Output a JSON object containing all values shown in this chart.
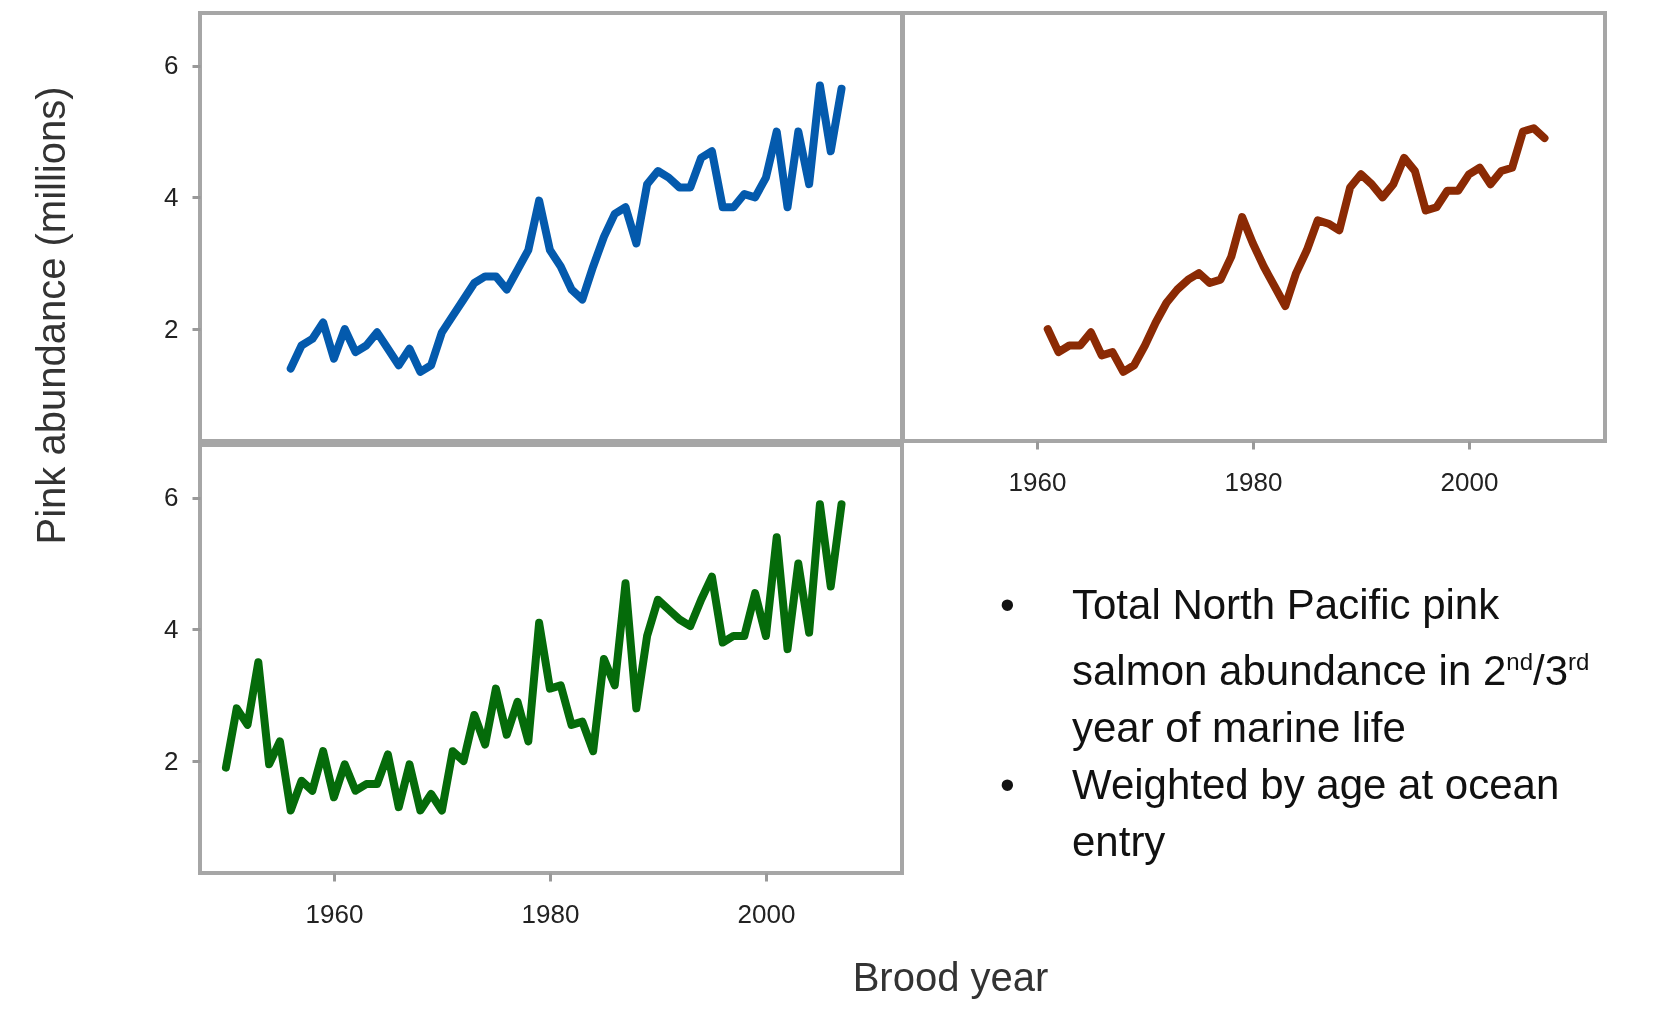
{
  "chart_data": [
    {
      "type": "line",
      "x": [
        1956,
        1957,
        1958,
        1959,
        1960,
        1961,
        1962,
        1963,
        1964,
        1965,
        1966,
        1967,
        1968,
        1969,
        1970,
        1971,
        1972,
        1973,
        1974,
        1975,
        1976,
        1977,
        1978,
        1979,
        1980,
        1981,
        1982,
        1983,
        1984,
        1985,
        1986,
        1987,
        1988,
        1989,
        1990,
        1991,
        1992,
        1993,
        1994,
        1995,
        1996,
        1997,
        1998,
        1999,
        2000,
        2001,
        2002,
        2003,
        2004,
        2005,
        2006,
        2007
      ],
      "series": [
        {
          "color": "#045aad",
          "values": [
            1.4,
            1.75,
            1.85,
            2.1,
            1.55,
            2.0,
            1.65,
            1.75,
            1.95,
            1.7,
            1.45,
            1.7,
            1.35,
            1.45,
            1.95,
            2.2,
            2.45,
            2.7,
            2.8,
            2.8,
            2.6,
            2.9,
            3.2,
            3.95,
            3.2,
            2.95,
            2.6,
            2.45,
            2.95,
            3.4,
            3.75,
            3.85,
            3.3,
            4.2,
            4.4,
            4.3,
            4.15,
            4.15,
            4.6,
            4.7,
            3.85,
            3.85,
            4.05,
            4.0,
            4.3,
            5.0,
            3.85,
            5.0,
            4.2,
            5.7,
            4.7,
            5.65
          ]
        }
      ],
      "xlim": [
        1947.6,
        2012.6
      ],
      "ylim": [
        0.3,
        6.8
      ],
      "yticks": [
        2,
        4,
        6
      ],
      "tick_labels": "y",
      "line_style": "solid"
    },
    {
      "type": "line",
      "x": [
        1961,
        1962,
        1963,
        1964,
        1965,
        1966,
        1967,
        1968,
        1969,
        1970,
        1971,
        1972,
        1973,
        1974,
        1975,
        1976,
        1977,
        1978,
        1979,
        1980,
        1981,
        1982,
        1983,
        1984,
        1985,
        1986,
        1987,
        1988,
        1989,
        1990,
        1991,
        1992,
        1993,
        1994,
        1995,
        1996,
        1997,
        1998,
        1999,
        2000,
        2001,
        2002,
        2003,
        2004,
        2005,
        2006,
        2007
      ],
      "series": [
        {
          "color": "#8b2a04",
          "values": [
            2.0,
            1.65,
            1.75,
            1.75,
            1.95,
            1.6,
            1.65,
            1.35,
            1.45,
            1.75,
            2.1,
            2.4,
            2.6,
            2.75,
            2.85,
            2.7,
            2.75,
            3.1,
            3.7,
            3.3,
            2.95,
            2.65,
            2.35,
            2.85,
            3.2,
            3.65,
            3.6,
            3.5,
            4.15,
            4.35,
            4.2,
            4.0,
            4.2,
            4.6,
            4.4,
            3.8,
            3.85,
            4.1,
            4.1,
            4.35,
            4.45,
            4.2,
            4.4,
            4.45,
            5.0,
            5.05,
            4.9
          ]
        }
      ],
      "xlim": [
        1947.6,
        2012.6
      ],
      "ylim": [
        0.3,
        6.8
      ],
      "xticks": [
        1960,
        1980,
        2000
      ],
      "tick_labels": "x",
      "line_style": "solid"
    },
    {
      "type": "line",
      "xlabel": "Brood year",
      "ylabel": "Pink abundance (millions)",
      "x": [
        1950,
        1951,
        1952,
        1953,
        1954,
        1955,
        1956,
        1957,
        1958,
        1959,
        1960,
        1961,
        1962,
        1963,
        1964,
        1965,
        1966,
        1967,
        1968,
        1969,
        1970,
        1971,
        1972,
        1973,
        1974,
        1975,
        1976,
        1977,
        1978,
        1979,
        1980,
        1981,
        1982,
        1983,
        1984,
        1985,
        1986,
        1987,
        1988,
        1989,
        1990,
        1991,
        1992,
        1993,
        1994,
        1995,
        1996,
        1997,
        1998,
        1999,
        2000,
        2001,
        2002,
        2003,
        2004,
        2005,
        2006,
        2007
      ],
      "series": [
        {
          "color": "#056b0a",
          "values": [
            1.9,
            2.8,
            2.55,
            3.5,
            1.95,
            2.3,
            1.25,
            1.7,
            1.55,
            2.15,
            1.45,
            1.95,
            1.55,
            1.65,
            1.65,
            2.1,
            1.3,
            1.95,
            1.25,
            1.5,
            1.25,
            2.15,
            2.0,
            2.7,
            2.25,
            3.1,
            2.4,
            2.9,
            2.3,
            4.1,
            3.1,
            3.15,
            2.55,
            2.6,
            2.15,
            3.55,
            3.15,
            4.7,
            2.8,
            3.9,
            4.45,
            4.3,
            4.15,
            4.05,
            4.45,
            4.8,
            3.8,
            3.9,
            3.9,
            4.55,
            3.9,
            5.4,
            3.7,
            5.0,
            3.95,
            5.9,
            4.65,
            5.9
          ]
        }
      ],
      "xlim": [
        1947.6,
        2012.6
      ],
      "ylim": [
        0.3,
        6.8
      ],
      "xticks": [
        1960,
        1980,
        2000
      ],
      "yticks": [
        2,
        4,
        6
      ],
      "line_style": "solid",
      "annotations": [
        "• Total North Pacific pink salmon abundance in 2$^{nd}$/3$^{rd}$ year of marine life",
        "• Weighted by age at ocean entry"
      ]
    }
  ]
}
